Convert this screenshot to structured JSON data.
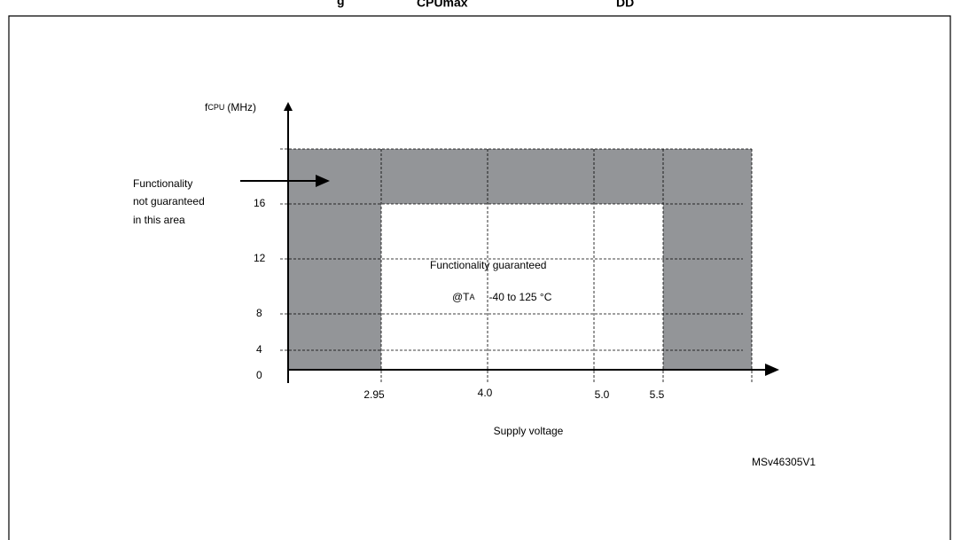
{
  "title_fragments": [
    "g",
    "CPUmax",
    "DD"
  ],
  "y_axis": {
    "symbol": "f",
    "subscript": "CPU",
    "unit": "(MHz)",
    "ticks": [
      "16",
      "12",
      "8",
      "4",
      "0"
    ]
  },
  "x_axis": {
    "label": "Supply voltage",
    "ticks": [
      "2.95",
      "4.0",
      "5.0",
      "5.5"
    ]
  },
  "guaranteed": {
    "line1": "Functionality guaranteed",
    "prefix": "@T",
    "subscript": "A",
    "range": "-40 to 125 °C"
  },
  "not_guaranteed": [
    "Functionality",
    "not guaranteed",
    "in this area"
  ],
  "figure_id": "MSv46305V1"
}
